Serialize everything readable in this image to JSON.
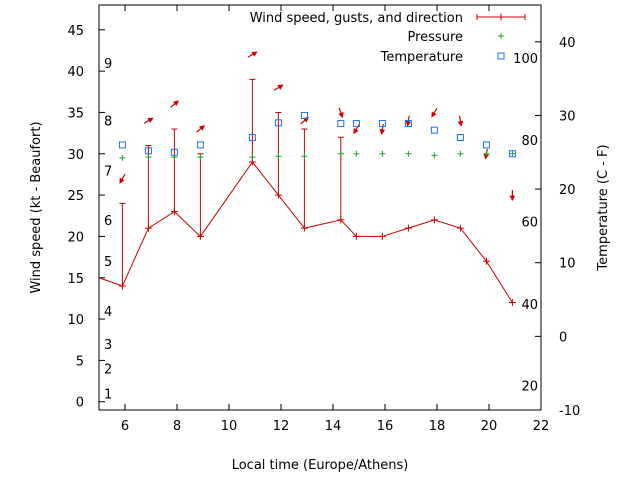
{
  "chart_data": {
    "type": "line",
    "xlabel": "Local time (Europe/Athens)",
    "ylabel": "Wind speed (kt - Beaufort)",
    "y2label": "Temperature (C - F)",
    "xlim": [
      5,
      22
    ],
    "ylim": [
      -1,
      48
    ],
    "y2lim": [
      -10,
      45
    ],
    "xticks": [
      6,
      8,
      10,
      12,
      14,
      16,
      18,
      20,
      22
    ],
    "yticks": [
      0,
      5,
      10,
      15,
      20,
      25,
      30,
      35,
      40,
      45
    ],
    "y2ticks": [
      -10,
      0,
      10,
      20,
      30,
      40
    ],
    "beaufort_labels": [
      {
        "label": "1",
        "y": 1
      },
      {
        "label": "2",
        "y": 4
      },
      {
        "label": "3",
        "y": 7
      },
      {
        "label": "4",
        "y": 11
      },
      {
        "label": "5",
        "y": 17
      },
      {
        "label": "6",
        "y": 22
      },
      {
        "label": "7",
        "y": 28
      },
      {
        "label": "8",
        "y": 34
      },
      {
        "label": "9",
        "y": 41
      }
    ],
    "fahrenheit_labels": [
      {
        "label": "20",
        "t": -6.7
      },
      {
        "label": "40",
        "t": 4.4
      },
      {
        "label": "60",
        "t": 15.6
      },
      {
        "label": "80",
        "t": 26.7
      },
      {
        "label": "100",
        "t": 37.8
      }
    ],
    "legend": {
      "position": "top-right"
    },
    "colors": {
      "wind": "#cc0000",
      "pressure": "#22a022",
      "temperature": "#1a73e8",
      "axis": "#000000"
    },
    "series": [
      {
        "name": "Wind speed, gusts, and direction",
        "x": [
          5,
          5.9,
          6.9,
          7.9,
          8.9,
          10.9,
          11.9,
          12.9,
          14.3,
          14.9,
          15.9,
          16.9,
          17.9,
          18.9,
          19.9,
          20.9
        ],
        "wind": [
          15,
          14,
          21,
          23,
          20,
          29,
          25,
          21,
          22,
          20,
          20,
          21,
          22,
          21,
          17,
          12
        ],
        "gust": [
          null,
          24,
          31,
          33,
          30,
          39,
          35,
          33,
          32,
          null,
          null,
          null,
          null,
          null,
          null,
          null
        ],
        "dir_deg": [
          null,
          30,
          240,
          230,
          230,
          240,
          240,
          230,
          340,
          30,
          10,
          10,
          30,
          350,
          10,
          360
        ]
      },
      {
        "name": "Pressure",
        "x": [
          5.9,
          6.9,
          7.9,
          8.9,
          10.9,
          11.9,
          12.9,
          14.3,
          14.9,
          15.9,
          16.9,
          17.9,
          18.9,
          19.9,
          20.9
        ],
        "y": [
          29.5,
          29.6,
          29.6,
          29.6,
          29.6,
          29.7,
          29.7,
          30.0,
          30.0,
          30.0,
          30.0,
          29.8,
          30.0,
          30.0,
          30.0
        ]
      },
      {
        "name": "Temperature",
        "x": [
          5.9,
          6.9,
          7.9,
          8.9,
          10.9,
          11.9,
          12.9,
          14.3,
          14.9,
          15.9,
          16.9,
          17.9,
          18.9,
          19.9,
          20.9
        ],
        "y": [
          26,
          25.2,
          25,
          26,
          27,
          29,
          30,
          28.9,
          28.9,
          28.9,
          28.9,
          28,
          27,
          26,
          24.8
        ]
      }
    ]
  }
}
